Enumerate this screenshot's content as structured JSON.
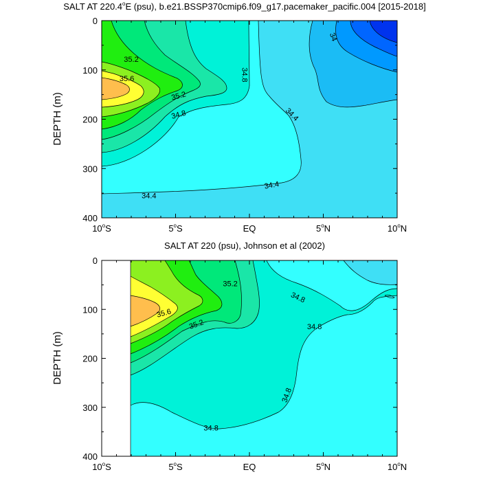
{
  "chart_data": [
    {
      "type": "contour",
      "title_prefix": "SALT AT 220.4",
      "title_sup": "o",
      "title_suffix": "E (psu), b.e21.BSSP370cmip6.f09_g17.pacemaker_pacific.004 [2015-2018]",
      "ylabel": "DEPTH (m)",
      "ylim": [
        400,
        0
      ],
      "yticks": [
        "0",
        "100",
        "200",
        "300",
        "400"
      ],
      "xticks": [
        {
          "deg": "10",
          "hemi": "S"
        },
        {
          "deg": "5",
          "hemi": "S"
        },
        {
          "deg": "",
          "hemi": "EQ"
        },
        {
          "deg": "5",
          "hemi": "N"
        },
        {
          "deg": "10",
          "hemi": "N"
        }
      ],
      "contour_labels": [
        {
          "text": "35.2",
          "lat": -8.0,
          "depth": 78,
          "rot": 0
        },
        {
          "text": "35.6",
          "lat": -8.3,
          "depth": 117,
          "rot": 0
        },
        {
          "text": "35.2",
          "lat": -4.8,
          "depth": 152,
          "rot": -15
        },
        {
          "text": "34.8",
          "lat": -4.8,
          "depth": 190,
          "rot": -15
        },
        {
          "text": "34.8",
          "lat": -0.3,
          "depth": 110,
          "rot": 90
        },
        {
          "text": "34.4",
          "lat": 2.9,
          "depth": 190,
          "rot": 45
        },
        {
          "text": "34.4",
          "lat": -6.8,
          "depth": 355,
          "rot": 0
        },
        {
          "text": "34.4",
          "lat": 1.5,
          "depth": 333,
          "rot": -10
        },
        {
          "text": "34",
          "lat": 5.7,
          "depth": 33,
          "rot": 70
        }
      ]
    },
    {
      "type": "contour",
      "title": "SALT AT 220 (psu), Johnson et al (2002)",
      "ylabel": "DEPTH (m)",
      "ylim": [
        400,
        0
      ],
      "yticks": [
        "0",
        "100",
        "200",
        "300",
        "400"
      ],
      "xticks": [
        {
          "deg": "10",
          "hemi": "S"
        },
        {
          "deg": "5",
          "hemi": "S"
        },
        {
          "deg": "",
          "hemi": "EQ"
        },
        {
          "deg": "5",
          "hemi": "N"
        },
        {
          "deg": "10",
          "hemi": "N"
        }
      ],
      "contour_labels": [
        {
          "text": "35.2",
          "lat": -1.3,
          "depth": 47,
          "rot": 0
        },
        {
          "text": "35.6",
          "lat": -5.8,
          "depth": 107,
          "rot": -15
        },
        {
          "text": "35.2",
          "lat": -3.6,
          "depth": 130,
          "rot": -20
        },
        {
          "text": "34.8",
          "lat": 3.3,
          "depth": 75,
          "rot": 25
        },
        {
          "text": "34.8",
          "lat": 4.4,
          "depth": 135,
          "rot": 0
        },
        {
          "text": "34.8",
          "lat": 2.5,
          "depth": 275,
          "rot": -70
        },
        {
          "text": "34.8",
          "lat": -2.6,
          "depth": 342,
          "rot": 0
        }
      ]
    }
  ],
  "palette": {
    "c33_6": "#0033ee",
    "c33_8": "#0066ff",
    "c34_0": "#0099ff",
    "c34_2": "#1bbcf5",
    "c34_4": "#3fdff5",
    "c34_6": "#33ffff",
    "c34_8": "#00f2d8",
    "c35_0": "#1ae6a8",
    "c35_2": "#00e87a",
    "c35_4": "#20ee10",
    "c35_6": "#8cf020",
    "c35_8": "#ffff33",
    "c36_0": "#ffbe4d",
    "line": "#000000"
  }
}
